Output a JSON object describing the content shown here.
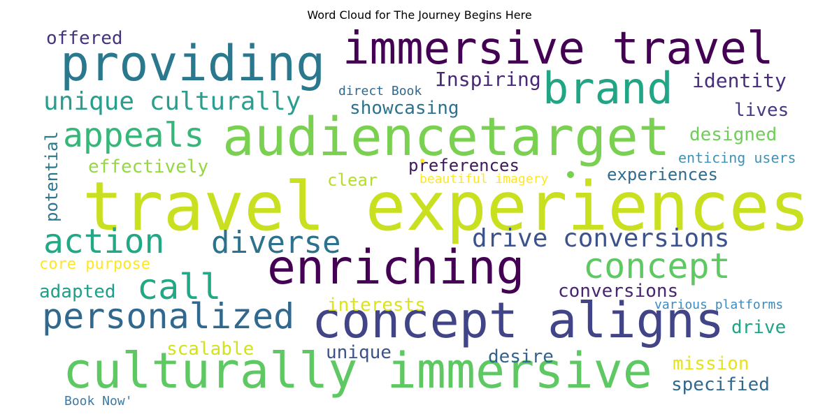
{
  "chart_data": {
    "type": "wordcloud",
    "title": "Word Cloud for The Journey Begins Here",
    "words": [
      {
        "text": "travel experiences",
        "color": "#c8e020"
      },
      {
        "text": "audiencetarget",
        "color": "#7ad151"
      },
      {
        "text": "immersive travel",
        "color": "#440154"
      },
      {
        "text": "providing",
        "color": "#2a788e"
      },
      {
        "text": "culturally immersive",
        "color": "#5ec962"
      },
      {
        "text": "concept aligns",
        "color": "#414487"
      },
      {
        "text": "enriching",
        "color": "#440154"
      },
      {
        "text": "brand",
        "color": "#21a585"
      },
      {
        "text": "personalized",
        "color": "#31688e"
      },
      {
        "text": "appeals",
        "color": "#35b779"
      },
      {
        "text": "action",
        "color": "#22a884"
      },
      {
        "text": "diverse",
        "color": "#2c728e"
      },
      {
        "text": "concept",
        "color": "#5ec962"
      },
      {
        "text": "call",
        "color": "#22a884"
      },
      {
        "text": "unique culturally",
        "color": "#2a9d8f"
      },
      {
        "text": "drive conversions",
        "color": "#3b528b"
      },
      {
        "text": "Inspiring",
        "color": "#482878"
      },
      {
        "text": "identity",
        "color": "#472d7b"
      },
      {
        "text": "showcasing",
        "color": "#2c728e"
      },
      {
        "text": "lives",
        "color": "#443983"
      },
      {
        "text": "designed",
        "color": "#6ece58"
      },
      {
        "text": "effectively",
        "color": "#95d840"
      },
      {
        "text": "preferences",
        "color": "#3e1a5a"
      },
      {
        "text": "experiences",
        "color": "#2f6c8e"
      },
      {
        "text": "offered",
        "color": "#46337e"
      },
      {
        "text": "direct Book",
        "color": "#31688e"
      },
      {
        "text": "enticing users",
        "color": "#3f92b5"
      },
      {
        "text": "clear",
        "color": "#b5de2b"
      },
      {
        "text": "beautiful imagery",
        "color": "#fde725"
      },
      {
        "text": "core purpose",
        "color": "#fde725"
      },
      {
        "text": "adapted",
        "color": "#1f9e89"
      },
      {
        "text": "conversions",
        "color": "#482475"
      },
      {
        "text": "interests",
        "color": "#dce319"
      },
      {
        "text": "various platforms",
        "color": "#3b8bc2"
      },
      {
        "text": "drive",
        "color": "#20a386"
      },
      {
        "text": "scalable",
        "color": "#d2e21b"
      },
      {
        "text": "unique",
        "color": "#3b528b"
      },
      {
        "text": "desire",
        "color": "#33638d"
      },
      {
        "text": "mission",
        "color": "#e5e419"
      },
      {
        "text": "specified",
        "color": "#30698e"
      },
      {
        "text": "Book Now'",
        "color": "#3b7aa3"
      },
      {
        "text": "potential",
        "color": "#2a788e"
      }
    ],
    "dots": [
      {
        "color": "#fde725"
      },
      {
        "color": "#7ad151"
      }
    ]
  }
}
